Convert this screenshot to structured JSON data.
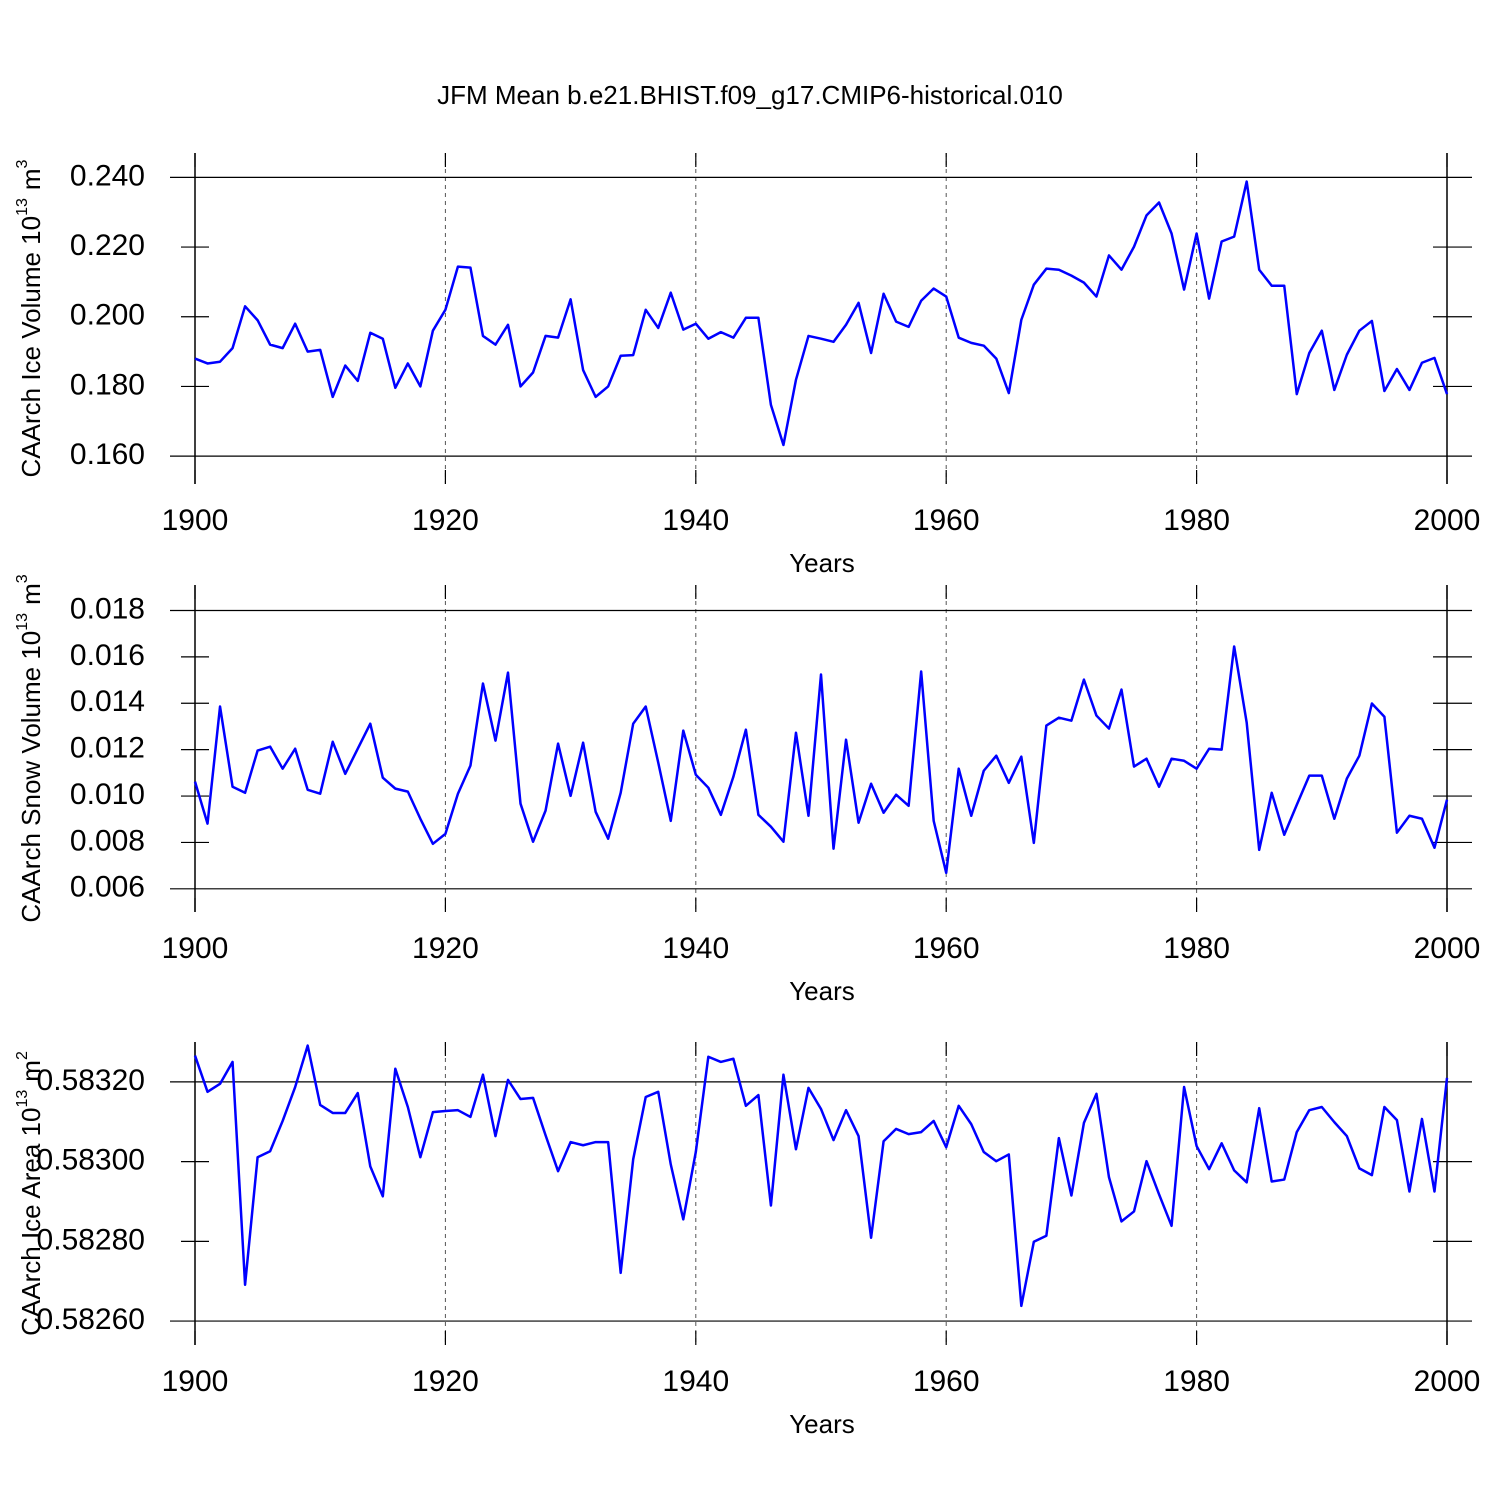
{
  "title": "JFM Mean b.e21.BHIST.f09_g17.CMIP6-historical.010",
  "chart_data": [
    {
      "type": "line",
      "ylabel": {
        "text": "CAArch Ice Volume 10",
        "power": "13",
        "unit": "m",
        "unit_power": "3"
      },
      "xlabel": "Years",
      "color": "#0000ff",
      "xlim": [
        1900,
        2000
      ],
      "xticks": [
        1900,
        1920,
        1940,
        1960,
        1980,
        2000
      ],
      "ylim": [
        0.152,
        0.247
      ],
      "yticks": [
        {
          "value": 0.16,
          "label": "0.160"
        },
        {
          "value": 0.18,
          "label": "0.180"
        },
        {
          "value": 0.2,
          "label": "0.200"
        },
        {
          "value": 0.22,
          "label": "0.220"
        },
        {
          "value": 0.24,
          "label": "0.240"
        }
      ],
      "x": [
        1900,
        1901,
        1902,
        1903,
        1904,
        1905,
        1906,
        1907,
        1908,
        1909,
        1910,
        1911,
        1912,
        1913,
        1914,
        1915,
        1916,
        1917,
        1918,
        1919,
        1920,
        1921,
        1922,
        1923,
        1924,
        1925,
        1926,
        1927,
        1928,
        1929,
        1930,
        1931,
        1932,
        1933,
        1934,
        1935,
        1936,
        1937,
        1938,
        1939,
        1940,
        1941,
        1942,
        1943,
        1944,
        1945,
        1946,
        1947,
        1948,
        1949,
        1950,
        1951,
        1952,
        1953,
        1954,
        1955,
        1956,
        1957,
        1958,
        1959,
        1960,
        1961,
        1962,
        1963,
        1964,
        1965,
        1966,
        1967,
        1968,
        1969,
        1970,
        1971,
        1972,
        1973,
        1974,
        1975,
        1976,
        1977,
        1978,
        1979,
        1980,
        1981,
        1982,
        1983,
        1984,
        1985,
        1986,
        1987,
        1988,
        1989,
        1990,
        1991,
        1992,
        1993,
        1994,
        1995,
        1996,
        1997,
        1998,
        1999,
        2000
      ],
      "values": [
        0.188,
        0.1866,
        0.1871,
        0.191,
        0.203,
        0.199,
        0.192,
        0.191,
        0.198,
        0.19,
        0.1905,
        0.177,
        0.186,
        0.1816,
        0.1954,
        0.1937,
        0.1796,
        0.1866,
        0.18,
        0.196,
        0.202,
        0.2144,
        0.2141,
        0.1945,
        0.192,
        0.1977,
        0.18,
        0.184,
        0.1945,
        0.194,
        0.205,
        0.1847,
        0.177,
        0.18,
        0.1888,
        0.189,
        0.202,
        0.1968,
        0.2069,
        0.1963,
        0.198,
        0.1937,
        0.1956,
        0.194,
        0.1997,
        0.1997,
        0.1747,
        0.1632,
        0.1819,
        0.1945,
        0.1937,
        0.1928,
        0.1977,
        0.204,
        0.1896,
        0.2066,
        0.1986,
        0.1971,
        0.2046,
        0.2081,
        0.2058,
        0.194,
        0.1925,
        0.1917,
        0.188,
        0.1781,
        0.1991,
        0.2092,
        0.2138,
        0.2135,
        0.2118,
        0.2098,
        0.2058,
        0.2176,
        0.2135,
        0.2201,
        0.2291,
        0.2328,
        0.2239,
        0.2078,
        0.2239,
        0.2052,
        0.2216,
        0.223,
        0.2388,
        0.2135,
        0.2089,
        0.2089,
        0.1778,
        0.1896,
        0.196,
        0.179,
        0.1891,
        0.196,
        0.1988,
        0.1787,
        0.185,
        0.179,
        0.1868,
        0.1882,
        0.1778
      ]
    },
    {
      "type": "line",
      "ylabel": {
        "text": "CAArch Snow Volume 10",
        "power": "13",
        "unit": "m",
        "unit_power": "3"
      },
      "xlabel": "Years",
      "color": "#0000ff",
      "xlim": [
        1900,
        2000
      ],
      "xticks": [
        1900,
        1920,
        1940,
        1960,
        1980,
        2000
      ],
      "ylim": [
        0.005,
        0.0191
      ],
      "yticks": [
        0.006,
        0.008,
        {
          "value": 0.01,
          "label": "0.010"
        },
        0.012,
        0.014,
        0.016,
        0.018
      ],
      "x": [
        1900,
        1901,
        1902,
        1903,
        1904,
        1905,
        1906,
        1907,
        1908,
        1909,
        1910,
        1911,
        1912,
        1913,
        1914,
        1915,
        1916,
        1917,
        1918,
        1919,
        1920,
        1921,
        1922,
        1923,
        1924,
        1925,
        1926,
        1927,
        1928,
        1929,
        1930,
        1931,
        1932,
        1933,
        1934,
        1935,
        1936,
        1937,
        1938,
        1939,
        1940,
        1941,
        1942,
        1943,
        1944,
        1945,
        1946,
        1947,
        1948,
        1949,
        1950,
        1951,
        1952,
        1953,
        1954,
        1955,
        1956,
        1957,
        1958,
        1959,
        1960,
        1961,
        1962,
        1963,
        1964,
        1965,
        1966,
        1967,
        1968,
        1969,
        1970,
        1971,
        1972,
        1973,
        1974,
        1975,
        1976,
        1977,
        1978,
        1979,
        1980,
        1981,
        1982,
        1983,
        1984,
        1985,
        1986,
        1987,
        1988,
        1989,
        1990,
        1991,
        1992,
        1993,
        1994,
        1995,
        1996,
        1997,
        1998,
        1999,
        2000
      ],
      "values": [
        0.01062,
        0.00881,
        0.01386,
        0.0104,
        0.01014,
        0.01196,
        0.01213,
        0.01118,
        0.01204,
        0.01027,
        0.0101,
        0.01234,
        0.01096,
        0.01204,
        0.01312,
        0.01079,
        0.01032,
        0.01019,
        0.00902,
        0.00794,
        0.00837,
        0.0101,
        0.01131,
        0.01485,
        0.01239,
        0.01532,
        0.00967,
        0.00803,
        0.00937,
        0.01226,
        0.01001,
        0.0123,
        0.00932,
        0.00816,
        0.01014,
        0.01312,
        0.01386,
        0.01144,
        0.00893,
        0.01282,
        0.01092,
        0.01036,
        0.00919,
        0.01083,
        0.01286,
        0.00919,
        0.00868,
        0.00803,
        0.01273,
        0.00915,
        0.01524,
        0.00773,
        0.01243,
        0.00885,
        0.01053,
        0.00928,
        0.01006,
        0.00958,
        0.01537,
        0.00893,
        0.00669,
        0.01118,
        0.00915,
        0.01109,
        0.01174,
        0.01057,
        0.0117,
        0.00798,
        0.01304,
        0.01338,
        0.01325,
        0.01502,
        0.01347,
        0.01291,
        0.01459,
        0.01127,
        0.01161,
        0.0104,
        0.01161,
        0.01152,
        0.01118,
        0.01204,
        0.012,
        0.01645,
        0.01317,
        0.00768,
        0.01014,
        0.00833,
        0.00962,
        0.01088,
        0.01088,
        0.00902,
        0.01075,
        0.01174,
        0.01399,
        0.01342,
        0.00842,
        0.00915,
        0.00902,
        0.00777,
        0.00984
      ]
    },
    {
      "type": "line",
      "ylabel": {
        "text": "CAArch Ice Area 10",
        "power": "13",
        "unit": "m",
        "unit_power": "2"
      },
      "xlabel": "Years",
      "color": "#0000ff",
      "xlim": [
        1900,
        2000
      ],
      "xticks": [
        1900,
        1920,
        1940,
        1960,
        1980,
        2000
      ],
      "ylim": [
        0.58254,
        0.5833
      ],
      "yticks": [
        {
          "value": 0.5826,
          "label": "0.58260"
        },
        {
          "value": 0.5828,
          "label": "0.58280"
        },
        {
          "value": 0.583,
          "label": "0.58300"
        },
        {
          "value": 0.5832,
          "label": "0.58320"
        }
      ],
      "x": [
        1900,
        1901,
        1902,
        1903,
        1904,
        1905,
        1906,
        1907,
        1908,
        1909,
        1910,
        1911,
        1912,
        1913,
        1914,
        1915,
        1916,
        1917,
        1918,
        1919,
        1920,
        1921,
        1922,
        1923,
        1924,
        1925,
        1926,
        1927,
        1928,
        1929,
        1930,
        1931,
        1932,
        1933,
        1934,
        1935,
        1936,
        1937,
        1938,
        1939,
        1940,
        1941,
        1942,
        1943,
        1944,
        1945,
        1946,
        1947,
        1948,
        1949,
        1950,
        1951,
        1952,
        1953,
        1954,
        1955,
        1956,
        1957,
        1958,
        1959,
        1960,
        1961,
        1962,
        1963,
        1964,
        1965,
        1966,
        1967,
        1968,
        1969,
        1970,
        1971,
        1972,
        1973,
        1974,
        1975,
        1976,
        1977,
        1978,
        1979,
        1980,
        1981,
        1982,
        1983,
        1984,
        1985,
        1986,
        1987,
        1988,
        1989,
        1990,
        1991,
        1992,
        1993,
        1994,
        1995,
        1996,
        1997,
        1998,
        1999,
        2000
      ],
      "values": [
        0.583266,
        0.583175,
        0.583195,
        0.58325,
        0.582691,
        0.583011,
        0.583026,
        0.583102,
        0.583187,
        0.583291,
        0.583142,
        0.583122,
        0.583122,
        0.583172,
        0.582988,
        0.582913,
        0.583233,
        0.583137,
        0.583011,
        0.583124,
        0.583127,
        0.583129,
        0.583112,
        0.583218,
        0.583064,
        0.583205,
        0.583157,
        0.58316,
        0.583066,
        0.582976,
        0.583049,
        0.583041,
        0.583049,
        0.583049,
        0.582721,
        0.583006,
        0.583162,
        0.583175,
        0.582993,
        0.582855,
        0.583024,
        0.583263,
        0.58325,
        0.583258,
        0.58314,
        0.583167,
        0.58289,
        0.583218,
        0.583031,
        0.583185,
        0.583132,
        0.583054,
        0.583129,
        0.583064,
        0.582809,
        0.583051,
        0.583082,
        0.583069,
        0.583074,
        0.583102,
        0.583036,
        0.58314,
        0.583094,
        0.583024,
        0.583001,
        0.583018,
        0.582638,
        0.582799,
        0.582814,
        0.583059,
        0.582915,
        0.583097,
        0.58317,
        0.582961,
        0.58285,
        0.582875,
        0.583001,
        0.582918,
        0.582839,
        0.583187,
        0.583039,
        0.582981,
        0.583046,
        0.582978,
        0.582948,
        0.583134,
        0.58295,
        0.582955,
        0.583074,
        0.583129,
        0.583137,
        0.583099,
        0.583064,
        0.582983,
        0.582966,
        0.583137,
        0.583104,
        0.582925,
        0.583107,
        0.582925,
        0.58321
      ]
    }
  ]
}
